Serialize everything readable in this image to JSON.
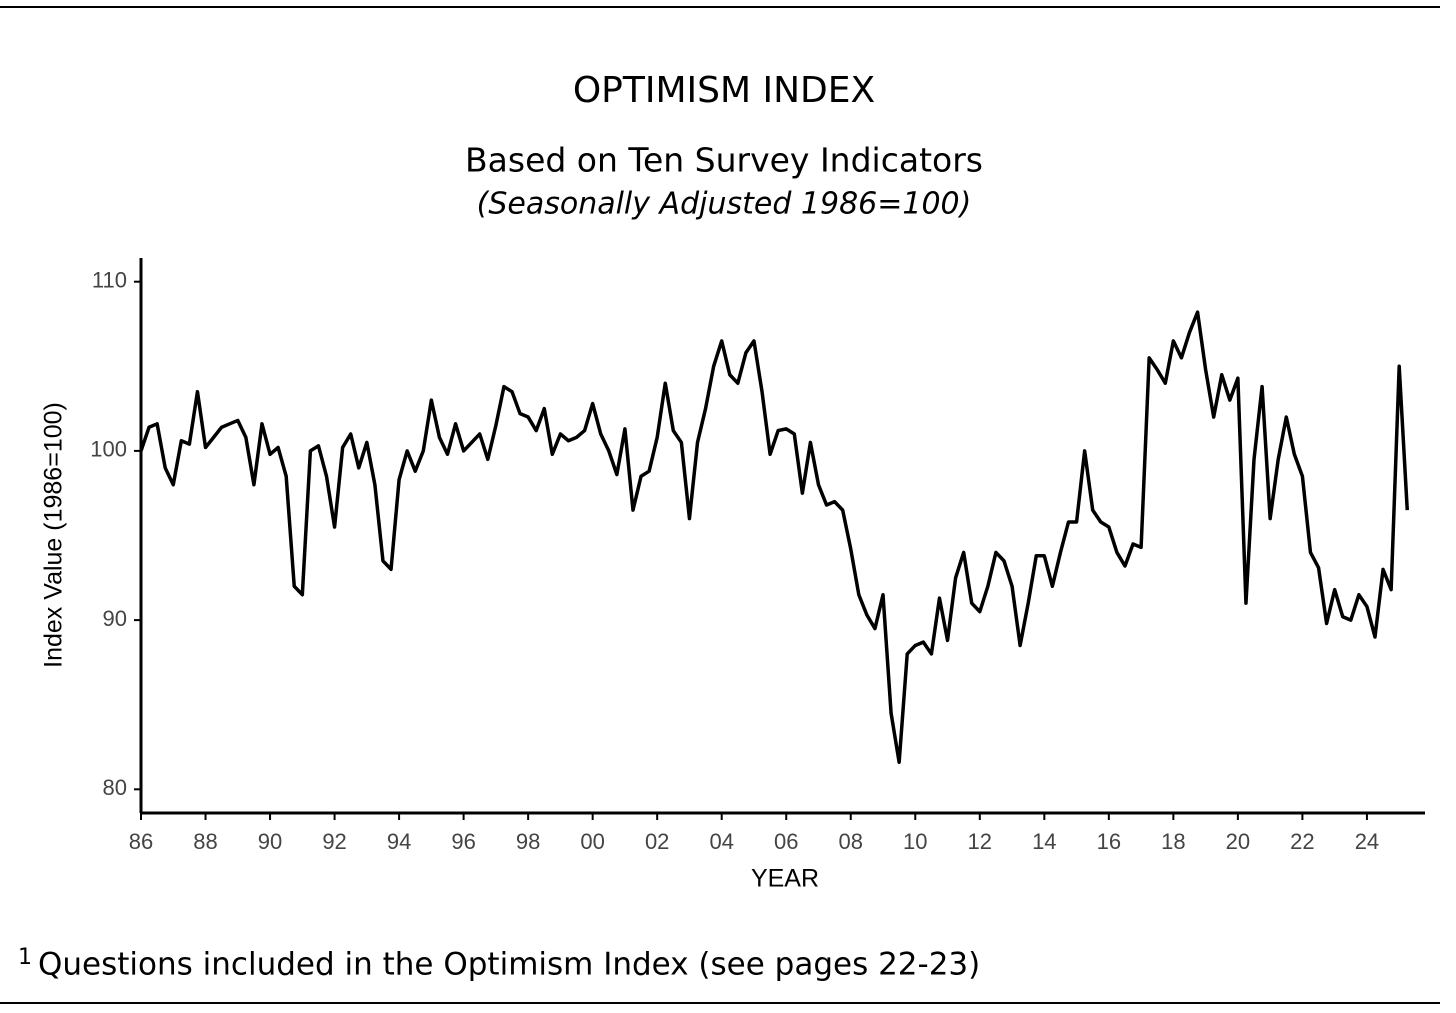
{
  "chart_data": {
    "type": "line",
    "title": "OPTIMISM INDEX",
    "subtitle": "Based on Ten Survey Indicators",
    "subtitle2": "(Seasonally Adjusted 1986=100)",
    "x_label": "YEAR",
    "y_label": "Index Value (1986=100)",
    "color": "#000000",
    "x": [
      1986,
      1986.25,
      1986.5,
      1986.75,
      1987,
      1987.25,
      1987.5,
      1987.75,
      1988,
      1988.25,
      1988.5,
      1988.75,
      1989,
      1989.25,
      1989.5,
      1989.75,
      1990,
      1990.25,
      1990.5,
      1990.75,
      1991,
      1991.25,
      1991.5,
      1991.75,
      1992,
      1992.25,
      1992.5,
      1992.75,
      1993,
      1993.25,
      1993.5,
      1993.75,
      1994,
      1994.25,
      1994.5,
      1994.75,
      1995,
      1995.25,
      1995.5,
      1995.75,
      1996,
      1996.25,
      1996.5,
      1996.75,
      1997,
      1997.25,
      1997.5,
      1997.75,
      1998,
      1998.25,
      1998.5,
      1998.75,
      1999,
      1999.25,
      1999.5,
      1999.75,
      2000,
      2000.25,
      2000.5,
      2000.75,
      2001,
      2001.25,
      2001.5,
      2001.75,
      2002,
      2002.25,
      2002.5,
      2002.75,
      2003,
      2003.25,
      2003.5,
      2003.75,
      2004,
      2004.25,
      2004.5,
      2004.75,
      2005,
      2005.25,
      2005.5,
      2005.75,
      2006,
      2006.25,
      2006.5,
      2006.75,
      2007,
      2007.25,
      2007.5,
      2007.75,
      2008,
      2008.25,
      2008.5,
      2008.75,
      2009,
      2009.25,
      2009.5,
      2009.75,
      2010,
      2010.25,
      2010.5,
      2010.75,
      2011,
      2011.25,
      2011.5,
      2011.75,
      2012,
      2012.25,
      2012.5,
      2012.75,
      2013,
      2013.25,
      2013.5,
      2013.75,
      2014,
      2014.25,
      2014.5,
      2014.75,
      2015,
      2015.25,
      2015.5,
      2015.75,
      2016,
      2016.25,
      2016.5,
      2016.75,
      2017,
      2017.25,
      2017.5,
      2017.75,
      2018,
      2018.25,
      2018.5,
      2018.75,
      2019,
      2019.25,
      2019.5,
      2019.75,
      2020,
      2020.25,
      2020.5,
      2020.75,
      2021,
      2021.25,
      2021.5,
      2021.75,
      2022,
      2022.25,
      2022.5,
      2022.75,
      2023,
      2023.25,
      2023.5,
      2023.75,
      2024,
      2024.25,
      2024.5,
      2024.75,
      2025,
      2025.25
    ],
    "values": [
      100.0,
      101.4,
      101.6,
      99.0,
      98.0,
      100.6,
      100.4,
      103.5,
      100.2,
      100.8,
      101.4,
      101.6,
      101.8,
      100.8,
      98.0,
      101.6,
      99.8,
      100.2,
      98.5,
      92.0,
      91.5,
      100.0,
      100.3,
      98.5,
      95.5,
      100.2,
      101.0,
      99.0,
      100.5,
      98.0,
      93.5,
      93.0,
      98.3,
      100.0,
      98.8,
      100.0,
      103.0,
      100.8,
      99.8,
      101.6,
      100.0,
      100.5,
      101.0,
      99.5,
      101.5,
      103.8,
      103.5,
      102.2,
      102.0,
      101.2,
      102.5,
      99.8,
      101.0,
      100.6,
      100.8,
      101.2,
      102.8,
      101.0,
      100.0,
      98.6,
      101.3,
      96.5,
      98.5,
      98.8,
      100.8,
      104.0,
      101.2,
      100.5,
      96.0,
      100.5,
      102.5,
      105.0,
      106.5,
      104.5,
      104.0,
      105.8,
      106.5,
      103.5,
      99.8,
      101.2,
      101.3,
      101.0,
      97.5,
      100.5,
      98.0,
      96.8,
      97.0,
      96.5,
      94.2,
      91.5,
      90.3,
      89.5,
      91.5,
      84.5,
      81.6,
      88.0,
      88.5,
      88.7,
      88.0,
      91.3,
      88.8,
      92.5,
      94.0,
      91.0,
      90.5,
      92.0,
      94.0,
      93.5,
      92.0,
      88.5,
      91.0,
      93.8,
      93.8,
      92.0,
      94.0,
      95.8,
      95.8,
      100.0,
      96.5,
      95.8,
      95.5,
      94.0,
      93.2,
      94.5,
      94.3,
      105.5,
      104.8,
      104.0,
      106.5,
      105.5,
      107.0,
      108.2,
      104.8,
      102.0,
      104.5,
      103.0,
      104.3,
      91.0,
      99.5,
      103.8,
      96.0,
      99.5,
      102.0,
      99.8,
      98.5,
      94.0,
      93.1,
      89.8,
      91.8,
      90.2,
      90.0,
      91.5,
      90.8,
      89.0,
      93.0,
      91.8,
      105.0,
      96.5
    ],
    "xlim": [
      1986,
      2025.8
    ],
    "ylim": [
      78.6,
      111.4
    ],
    "xticks": [
      {
        "value": 1986,
        "label": "86"
      },
      {
        "value": 1988,
        "label": "88"
      },
      {
        "value": 1990,
        "label": "90"
      },
      {
        "value": 1992,
        "label": "92"
      },
      {
        "value": 1994,
        "label": "94"
      },
      {
        "value": 1996,
        "label": "96"
      },
      {
        "value": 1998,
        "label": "98"
      },
      {
        "value": 2000,
        "label": "00"
      },
      {
        "value": 2002,
        "label": "02"
      },
      {
        "value": 2004,
        "label": "04"
      },
      {
        "value": 2006,
        "label": "06"
      },
      {
        "value": 2008,
        "label": "08"
      },
      {
        "value": 2010,
        "label": "10"
      },
      {
        "value": 2012,
        "label": "12"
      },
      {
        "value": 2014,
        "label": "14"
      },
      {
        "value": 2016,
        "label": "16"
      },
      {
        "value": 2018,
        "label": "18"
      },
      {
        "value": 2020,
        "label": "20"
      },
      {
        "value": 2022,
        "label": "22"
      },
      {
        "value": 2024,
        "label": "24"
      }
    ],
    "yticks": [
      80,
      90,
      100,
      110
    ],
    "grid": false
  },
  "footnote": {
    "marker": "1",
    "text": "Questions included in the Optimism Index (see pages 22-23)"
  }
}
